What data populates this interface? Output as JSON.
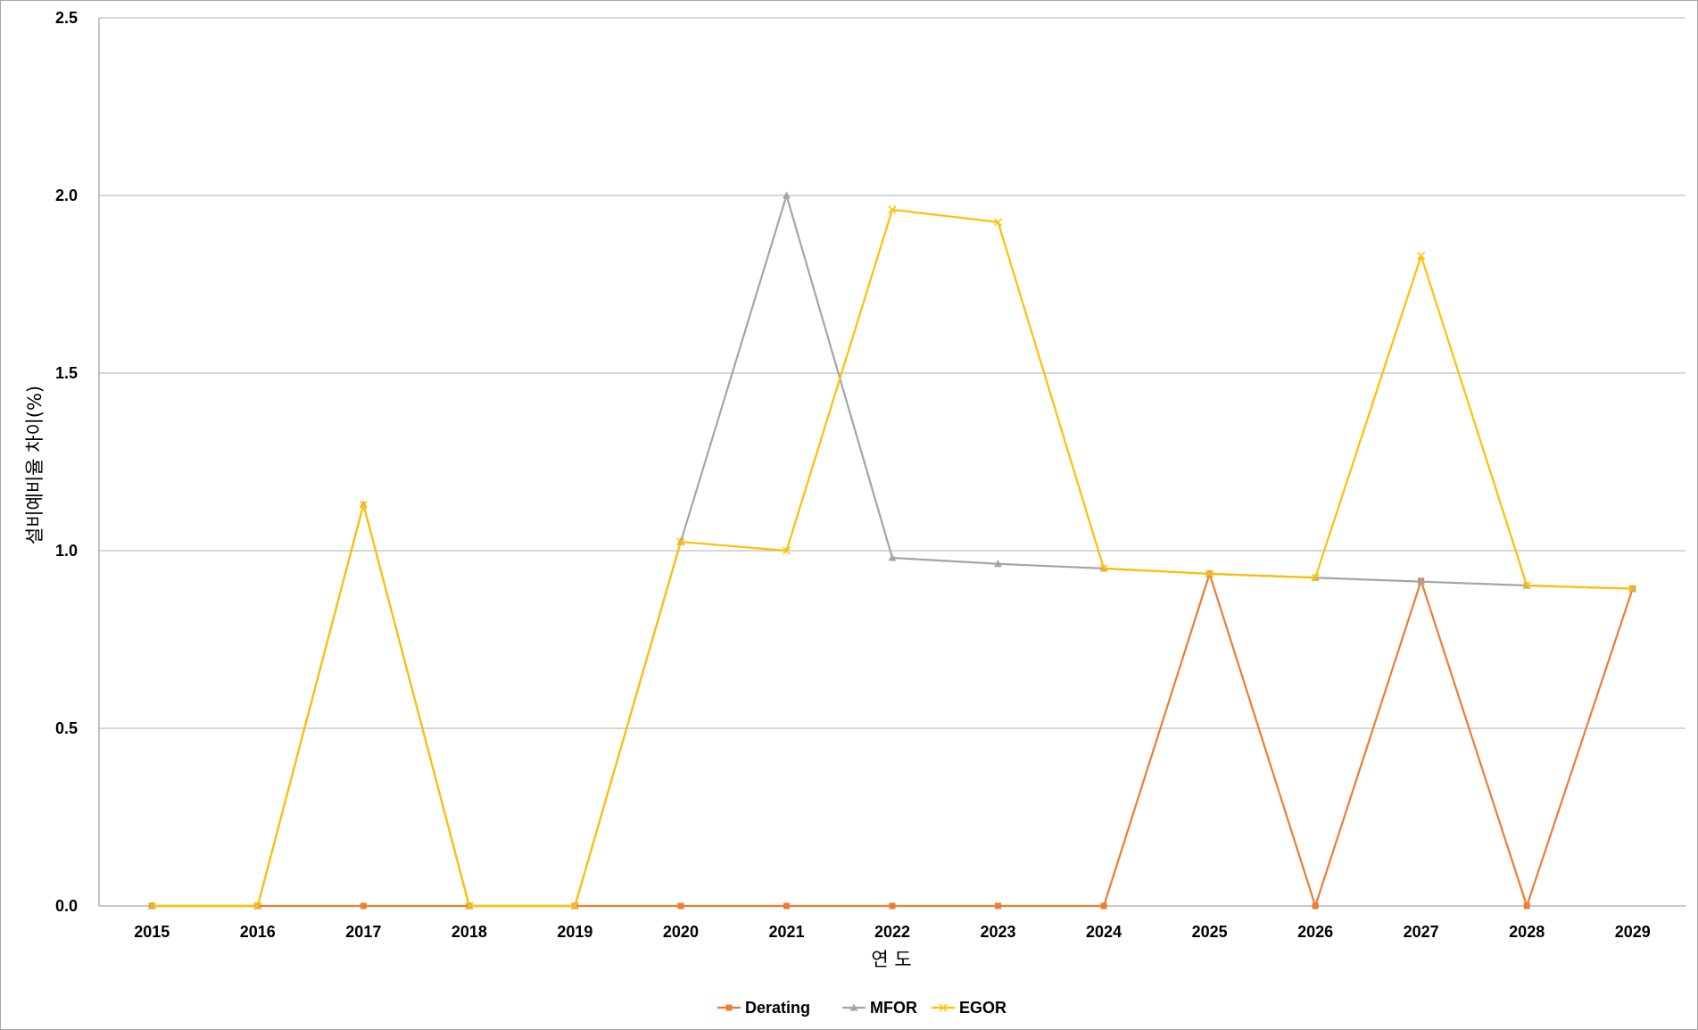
{
  "chart_data": {
    "type": "line",
    "xlabel": "연 도",
    "ylabel": "설비예비율 차이(%)",
    "categories": [
      "2015",
      "2016",
      "2017",
      "2018",
      "2019",
      "2020",
      "2021",
      "2022",
      "2023",
      "2024",
      "2025",
      "2026",
      "2027",
      "2028",
      "2029"
    ],
    "ylim": [
      0,
      2.5
    ],
    "yticks": [
      "0.0",
      "0.5",
      "1.0",
      "1.5",
      "2.0",
      "2.5"
    ],
    "grid": "horizontal",
    "legend_position": "bottom",
    "series": [
      {
        "name": "Derating",
        "color": "#ED7D31",
        "marker": "square",
        "values": [
          0,
          0,
          0,
          0,
          0,
          0,
          0,
          0,
          0,
          0,
          0.935,
          0,
          0.915,
          0,
          0.893
        ]
      },
      {
        "name": "MFOR",
        "color": "#A5A5A5",
        "marker": "triangle",
        "values": [
          0,
          0,
          1.13,
          0,
          0,
          1.025,
          2.0,
          0.98,
          0.963,
          0.95,
          0.935,
          0.924,
          0.913,
          0.902,
          0.893
        ]
      },
      {
        "name": "EGOR",
        "color": "#FFC000",
        "marker": "x",
        "values": [
          0,
          0,
          1.13,
          0,
          0,
          1.025,
          1.0,
          1.96,
          1.925,
          0.95,
          0.935,
          0.924,
          1.83,
          0.902,
          0.893
        ]
      }
    ]
  }
}
